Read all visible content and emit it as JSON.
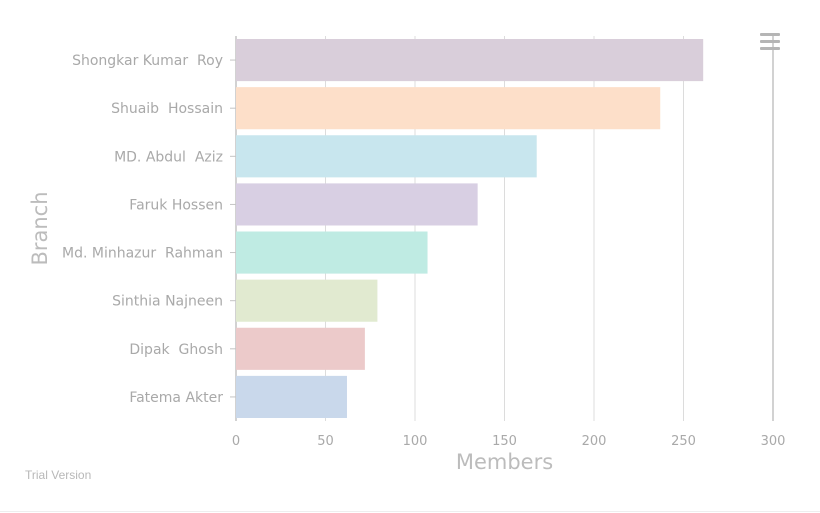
{
  "chart_data": {
    "type": "bar",
    "orientation": "horizontal",
    "categories": [
      "Shongkar Kumar  Roy",
      "Shuaib  Hossain",
      "MD. Abdul  Aziz",
      "Faruk Hossen",
      "Md. Minhazur  Rahman",
      "Sinthia Najneen",
      "Dipak  Ghosh",
      "Fatema Akter"
    ],
    "values": [
      261,
      237,
      168,
      135,
      107,
      79,
      72,
      62
    ],
    "bar_colors": [
      "#d9ceda",
      "#fddfc9",
      "#c8e6ee",
      "#d8cfe3",
      "#bfebe3",
      "#e1ead0",
      "#eccaca",
      "#c9d8eb"
    ],
    "xlabel": "Members",
    "ylabel": "Branch",
    "xlim": [
      0,
      300
    ],
    "xticks": [
      0,
      50,
      100,
      150,
      200,
      250,
      300
    ],
    "grid": true
  },
  "credit": "Trial Version",
  "toolbar": {
    "menu_icon": "hamburger-menu-icon"
  }
}
